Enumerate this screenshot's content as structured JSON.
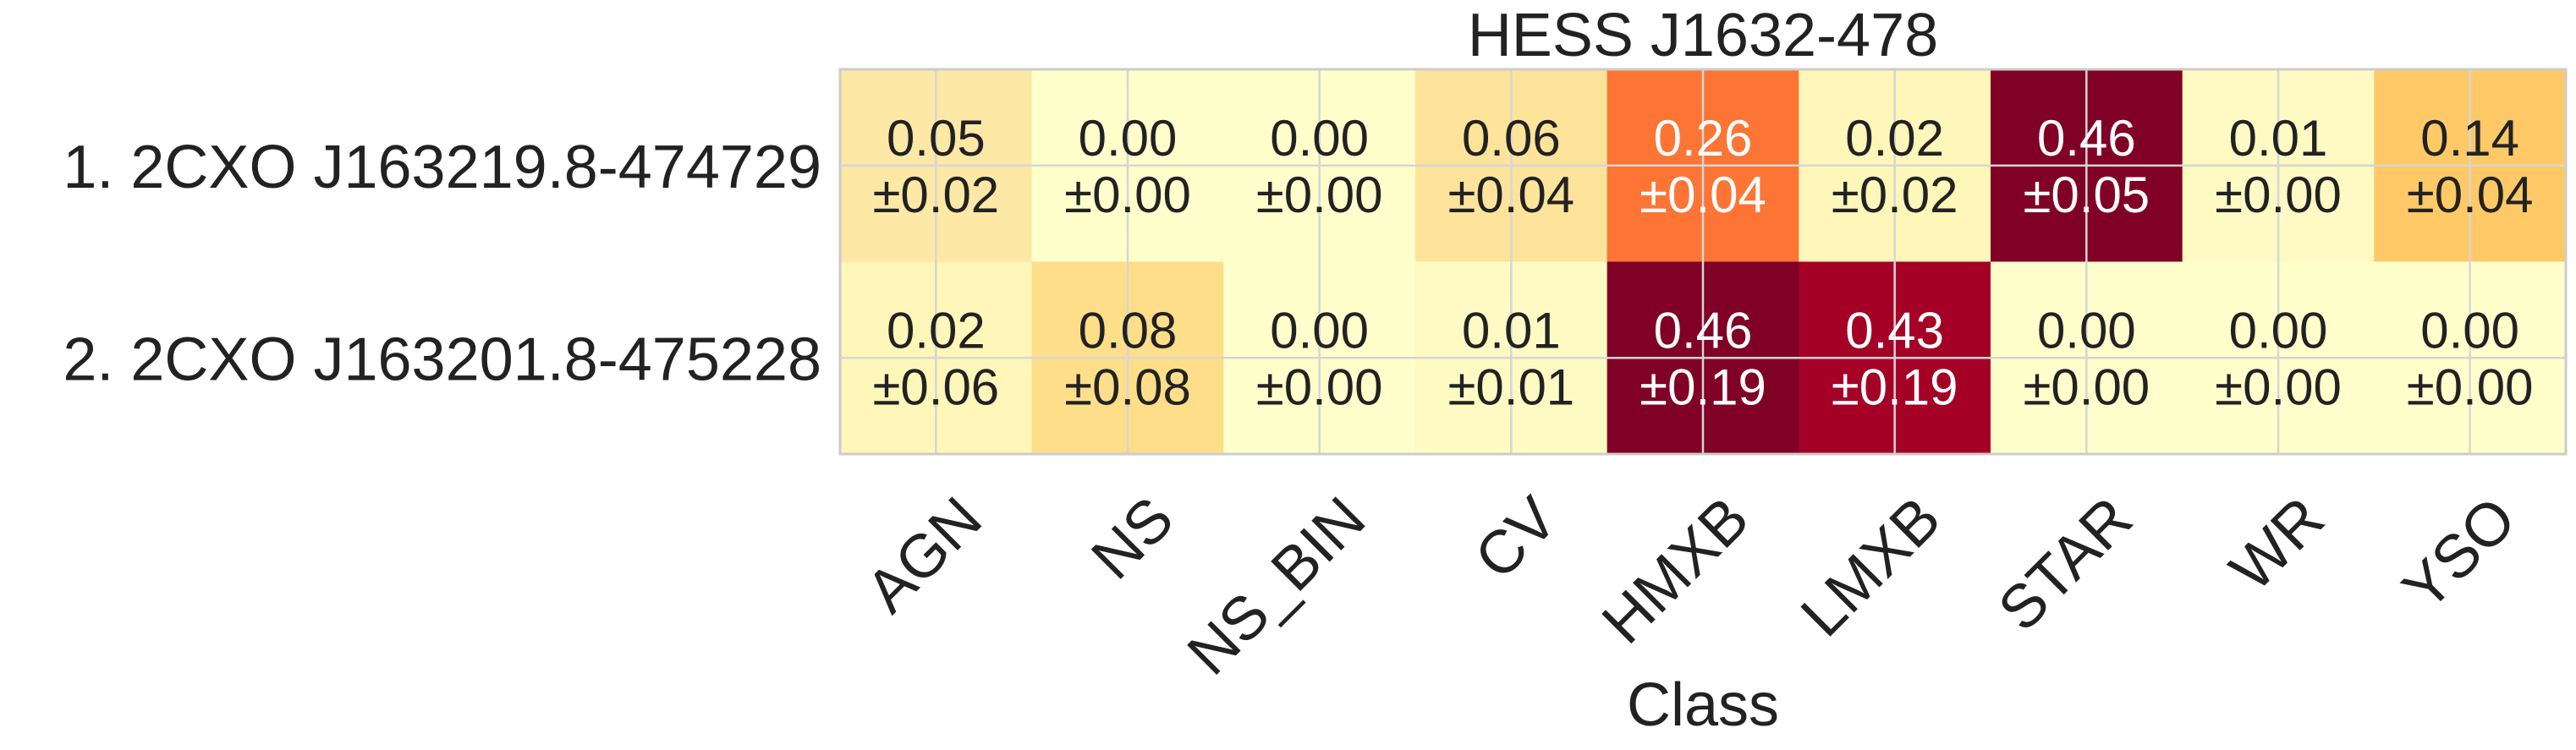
{
  "chart_data": {
    "type": "heatmap",
    "title": "HESS J1632-478",
    "xlabel": "Class",
    "ylabel": "",
    "categories": [
      "AGN",
      "NS",
      "NS_BIN",
      "CV",
      "HMXB",
      "LMXB",
      "STAR",
      "WR",
      "YSO"
    ],
    "rows": [
      "1.  2CXO J163219.8-474729",
      "2.  2CXO J163201.8-475228"
    ],
    "values": [
      [
        0.05,
        0.0,
        0.0,
        0.06,
        0.26,
        0.02,
        0.46,
        0.01,
        0.14
      ],
      [
        0.02,
        0.08,
        0.0,
        0.01,
        0.46,
        0.43,
        0.0,
        0.0,
        0.0
      ]
    ],
    "errors": [
      [
        0.02,
        0.0,
        0.0,
        0.04,
        0.04,
        0.02,
        0.05,
        0.0,
        0.04
      ],
      [
        0.06,
        0.08,
        0.0,
        0.01,
        0.19,
        0.19,
        0.0,
        0.0,
        0.0
      ]
    ],
    "value_labels": [
      [
        "0.05",
        "0.00",
        "0.00",
        "0.06",
        "0.26",
        "0.02",
        "0.46",
        "0.01",
        "0.14"
      ],
      [
        "0.02",
        "0.08",
        "0.00",
        "0.01",
        "0.46",
        "0.43",
        "0.00",
        "0.00",
        "0.00"
      ]
    ],
    "error_labels": [
      [
        "±0.02",
        "±0.00",
        "±0.00",
        "±0.04",
        "±0.04",
        "±0.02",
        "±0.05",
        "±0.00",
        "±0.04"
      ],
      [
        "±0.06",
        "±0.08",
        "±0.00",
        "±0.01",
        "±0.19",
        "±0.19",
        "±0.00",
        "±0.00",
        "±0.00"
      ]
    ],
    "colormap": "YlOrRd",
    "grid": true,
    "colors": {
      "grid_line": "#d6d6d6",
      "frame": "#cccccc",
      "text_dark": "#222222",
      "text_light": "#ffffff",
      "cells": [
        [
          "#fee8a5",
          "#ffffcc",
          "#ffffcc",
          "#fee39a",
          "#fd7535",
          "#fff6b9",
          "#800026",
          "#fffac4",
          "#fec966"
        ],
        [
          "#fff6b9",
          "#fede89",
          "#ffffcc",
          "#fffac4",
          "#800026",
          "#a50026",
          "#ffffcc",
          "#ffffcc",
          "#ffffcc"
        ]
      ]
    }
  }
}
